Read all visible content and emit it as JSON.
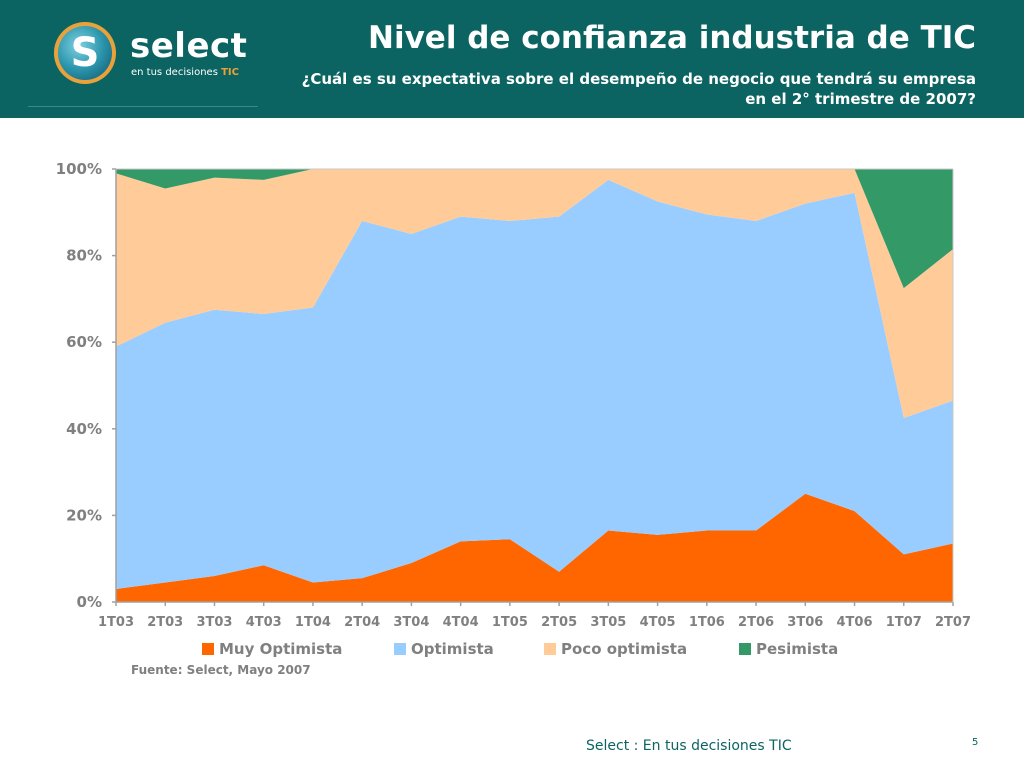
{
  "header": {
    "title": "Nivel de confianza industria de TIC",
    "subtitle_line1": "¿Cuál es su expectativa sobre el desempeño de negocio que tendrá su empresa",
    "subtitle_line2": "en el 2° trimestre de 2007?",
    "brand_name": "select",
    "brand_tagline": "en tus decisiones",
    "brand_tagline_accent": "TIC",
    "logo_letter": "S"
  },
  "colors": {
    "header_bg": "#0b6461",
    "muy_optimista": "#ff6600",
    "optimista": "#99ccff",
    "poco_optimista": "#ffcc99",
    "pesimista": "#339966"
  },
  "chart_data": {
    "type": "area",
    "stacked": true,
    "percent": true,
    "categories": [
      "1T03",
      "2T03",
      "3T03",
      "4T03",
      "1T04",
      "2T04",
      "3T04",
      "4T04",
      "1T05",
      "2T05",
      "3T05",
      "4T05",
      "1T06",
      "2T06",
      "3T06",
      "4T06",
      "1T07",
      "2T07"
    ],
    "series": [
      {
        "name": "Muy Optimista",
        "color": "#ff6600",
        "values": [
          3,
          4.5,
          6,
          8.5,
          4.5,
          5.5,
          9,
          14,
          14.5,
          7,
          16.5,
          15.5,
          16.5,
          16.5,
          25,
          21,
          11,
          13.5
        ]
      },
      {
        "name": "Optimista",
        "color": "#99ccff",
        "values": [
          56,
          60,
          61.5,
          58,
          63.5,
          82.5,
          76,
          75,
          73.5,
          82,
          81,
          77,
          73,
          71.5,
          67,
          73.5,
          31.5,
          33
        ]
      },
      {
        "name": "Poco optimista",
        "color": "#ffcc99",
        "values": [
          40,
          31,
          30.5,
          31,
          32,
          12,
          15,
          11,
          12,
          11,
          2.5,
          7.5,
          10.5,
          12,
          8,
          5.5,
          30,
          35
        ]
      },
      {
        "name": "Pesimista",
        "color": "#339966",
        "values": [
          1,
          4.5,
          2,
          2.5,
          0,
          0,
          0,
          0,
          0,
          0,
          0,
          0,
          0,
          0,
          0,
          0,
          27.5,
          18.5
        ]
      }
    ],
    "yticks": [
      "0%",
      "20%",
      "40%",
      "60%",
      "80%",
      "100%"
    ],
    "ylim": [
      0,
      100
    ],
    "grid": false,
    "legend_position": "bottom",
    "xlabel": "",
    "ylabel": ""
  },
  "source_note": "Fuente: Select, Mayo 2007",
  "footer": {
    "text": "Select  : En tus decisiones TIC",
    "page_number": "5"
  }
}
